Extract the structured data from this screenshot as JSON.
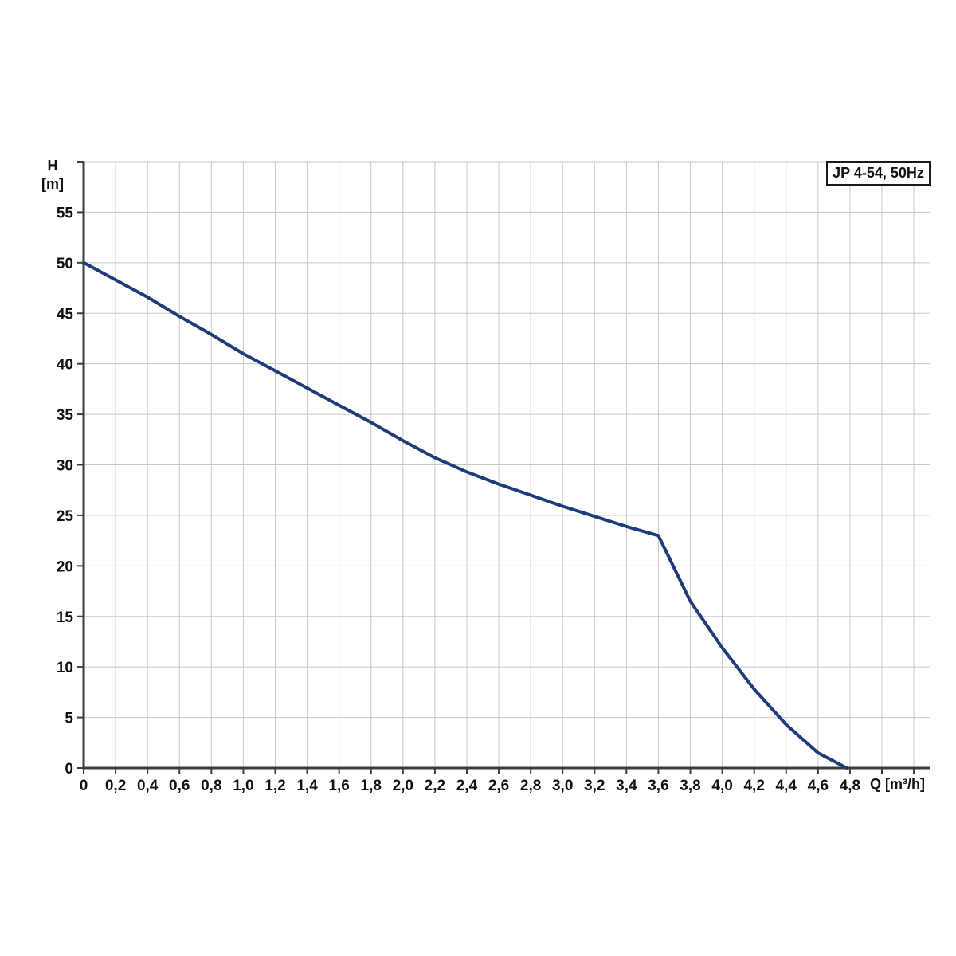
{
  "legend": {
    "label": "JP 4-54, 50Hz"
  },
  "axes": {
    "y_title_line1": "H",
    "y_title_line2": "[m]",
    "x_title": "Q [m³/h]"
  },
  "chart_data": {
    "type": "line",
    "title": "JP 4-54, 50Hz",
    "xlabel": "Q [m³/h]",
    "ylabel": "H [m]",
    "xlim": [
      0,
      5.3
    ],
    "ylim": [
      0,
      60
    ],
    "x_tick_step": 0.2,
    "y_tick_step": 5,
    "grid": true,
    "legend_position": "top-right",
    "x_tick_labels": [
      "0",
      "0,2",
      "0,4",
      "0,6",
      "0,8",
      "1,0",
      "1,2",
      "1,4",
      "1,6",
      "1,8",
      "2,0",
      "2,2",
      "2,4",
      "2,6",
      "2,8",
      "3,0",
      "3,2",
      "3,4",
      "3,6",
      "3,8",
      "4,0",
      "4,2",
      "4,4",
      "4,6",
      "4,8"
    ],
    "y_tick_labels": [
      "0",
      "5",
      "10",
      "15",
      "20",
      "25",
      "30",
      "35",
      "40",
      "45",
      "50",
      "55"
    ],
    "series": [
      {
        "name": "JP 4-54, 50Hz",
        "points": [
          [
            0.0,
            50.0
          ],
          [
            0.2,
            48.3
          ],
          [
            0.4,
            46.6
          ],
          [
            0.6,
            44.7
          ],
          [
            0.8,
            42.9
          ],
          [
            1.0,
            41.0
          ],
          [
            1.2,
            39.3
          ],
          [
            1.4,
            37.6
          ],
          [
            1.6,
            35.9
          ],
          [
            1.8,
            34.2
          ],
          [
            2.0,
            32.4
          ],
          [
            2.2,
            30.7
          ],
          [
            2.4,
            29.3
          ],
          [
            2.6,
            28.1
          ],
          [
            2.8,
            27.0
          ],
          [
            3.0,
            25.9
          ],
          [
            3.2,
            24.9
          ],
          [
            3.4,
            23.9
          ],
          [
            3.6,
            23.0
          ],
          [
            3.8,
            16.5
          ],
          [
            4.0,
            11.9
          ],
          [
            4.2,
            7.8
          ],
          [
            4.4,
            4.3
          ],
          [
            4.6,
            1.5
          ],
          [
            4.78,
            0.0
          ]
        ]
      }
    ],
    "colors": {
      "curve": "#1e3c78",
      "grid": "#c8c8c8",
      "axis": "#3c3c3c",
      "text": "#111111",
      "legend_border": "#1a1a1a",
      "background": "#ffffff"
    }
  }
}
